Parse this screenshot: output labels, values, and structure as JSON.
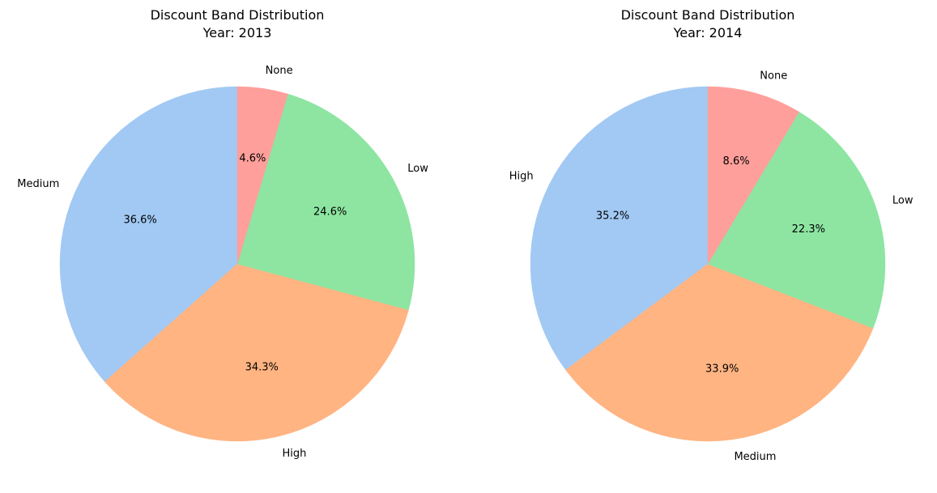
{
  "chart_data": [
    {
      "type": "pie",
      "title": "Discount Band Distribution",
      "subtitle": "Year: 2013",
      "start_angle_deg": 90,
      "direction": "counterclockwise",
      "slices": [
        {
          "label": " Medium",
          "value": 36.6,
          "pct_label": "36.6%",
          "color": "#a1c9f4"
        },
        {
          "label": " High",
          "value": 34.3,
          "pct_label": "34.3%",
          "color": "#ffb482"
        },
        {
          "label": " Low",
          "value": 24.6,
          "pct_label": "24.6%",
          "color": "#8de5a1"
        },
        {
          "label": " None",
          "value": 4.6,
          "pct_label": "4.6%",
          "color": "#ff9f9b"
        }
      ]
    },
    {
      "type": "pie",
      "title": "Discount Band Distribution",
      "subtitle": "Year: 2014",
      "start_angle_deg": 90,
      "direction": "counterclockwise",
      "slices": [
        {
          "label": " High",
          "value": 35.2,
          "pct_label": "35.2%",
          "color": "#a1c9f4"
        },
        {
          "label": " Medium",
          "value": 33.9,
          "pct_label": "33.9%",
          "color": "#ffb482"
        },
        {
          "label": " Low",
          "value": 22.3,
          "pct_label": "22.3%",
          "color": "#8de5a1"
        },
        {
          "label": " None",
          "value": 8.6,
          "pct_label": "8.6%",
          "color": "#ff9f9b"
        }
      ]
    }
  ]
}
